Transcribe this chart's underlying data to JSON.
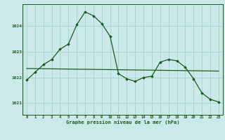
{
  "title": "Graphe pression niveau de la mer (hPa)",
  "bg_color": "#cbe9e9",
  "grid_color": "#9ecfcf",
  "line_color": "#1a5c1a",
  "marker_color": "#1a5c1a",
  "xlim": [
    -0.5,
    23.5
  ],
  "ylim": [
    1020.55,
    1024.85
  ],
  "yticks": [
    1021,
    1022,
    1023,
    1024
  ],
  "xticks": [
    0,
    1,
    2,
    3,
    4,
    5,
    6,
    7,
    8,
    9,
    10,
    11,
    12,
    13,
    14,
    15,
    16,
    17,
    18,
    19,
    20,
    21,
    22,
    23
  ],
  "series1_x": [
    0,
    1,
    2,
    3,
    4,
    5,
    6,
    7,
    8,
    9,
    10,
    11,
    12,
    13,
    14,
    15,
    16,
    17,
    18,
    19,
    20,
    21,
    22,
    23
  ],
  "series1_y": [
    1021.9,
    1022.2,
    1022.5,
    1022.7,
    1023.1,
    1023.3,
    1024.05,
    1024.55,
    1024.4,
    1024.1,
    1023.6,
    1022.15,
    1021.95,
    1021.85,
    1022.0,
    1022.05,
    1022.6,
    1022.7,
    1022.65,
    1022.4,
    1021.95,
    1021.4,
    1021.15,
    1021.05
  ],
  "series2_x": [
    0,
    23
  ],
  "series2_y": [
    1022.35,
    1022.25
  ]
}
